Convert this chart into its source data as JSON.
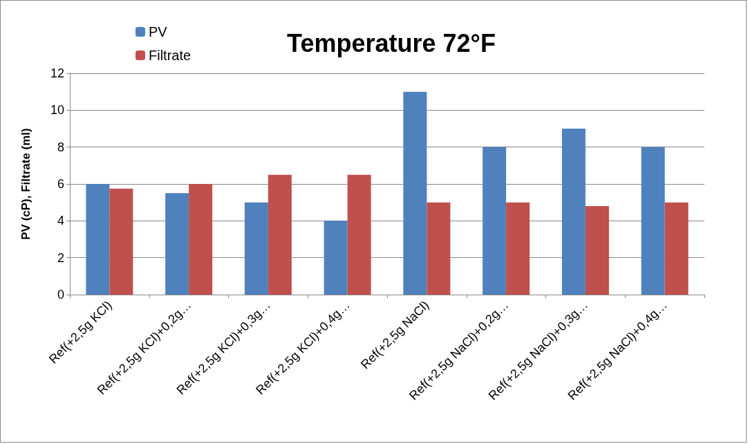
{
  "chart_data": {
    "type": "bar",
    "title": "Temperature 72°F",
    "ylabel": "PV (cP), Filtrate (ml)",
    "categories": [
      "Ref(+2,5g KCl)",
      "Ref(+2,5g KCl)+0,2g…",
      "Ref(+2,5g KCl)+0,3g…",
      "Ref(+2,5g KCl)+0,4g…",
      "Ref(+2,5g NaCl)",
      "Ref(+2,5g NaCl)+0,2g…",
      "Ref(+2,5g NaCl)+0,3g…",
      "Ref(+2,5g NaCl)+0,4g…"
    ],
    "series": [
      {
        "name": "PV",
        "color": "#4f81bd",
        "values": [
          6,
          5.5,
          5,
          4,
          11,
          8,
          9,
          8
        ]
      },
      {
        "name": "Filtrate",
        "color": "#c0504d",
        "values": [
          5.75,
          6,
          6.5,
          6.5,
          5,
          5,
          4.8,
          5
        ]
      }
    ],
    "ylim": [
      0,
      12
    ],
    "yticks": [
      0,
      2,
      4,
      6,
      8,
      10,
      12
    ],
    "grid": "y",
    "legend": "top left"
  }
}
